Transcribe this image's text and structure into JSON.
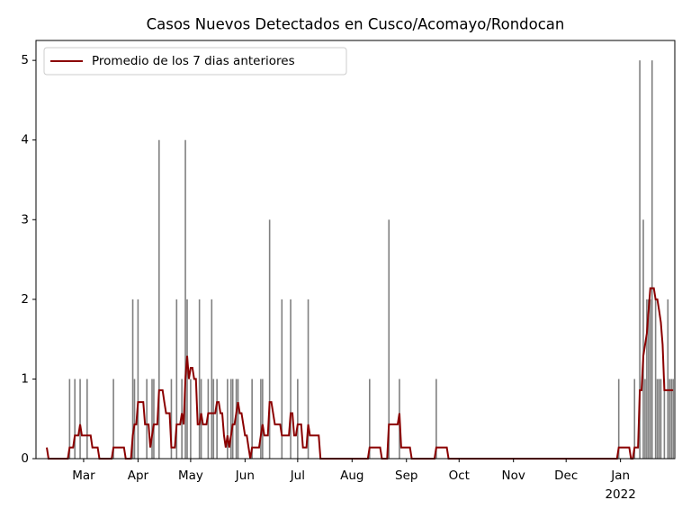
{
  "chart_data": {
    "type": "bar+line",
    "title": "Casos Nuevos Detectados en Cusco/Acomayo/Rondocan",
    "categories": [
      null,
      null,
      null,
      null,
      null,
      null,
      null,
      null,
      null,
      null,
      null,
      null,
      null,
      null,
      null,
      null,
      null,
      null,
      null,
      null,
      null,
      "Mar",
      null,
      null,
      null,
      null,
      null,
      null,
      null,
      null,
      null,
      null,
      null,
      null,
      null,
      null,
      null,
      null,
      null,
      null,
      null,
      null,
      null,
      null,
      null,
      null,
      null,
      null,
      null,
      null,
      null,
      null,
      "Apr",
      null,
      null,
      null,
      null,
      null,
      null,
      null,
      null,
      null,
      null,
      null,
      null,
      null,
      null,
      null,
      null,
      null,
      null,
      null,
      null,
      null,
      null,
      null,
      null,
      null,
      null,
      null,
      null,
      null,
      "May",
      null,
      null,
      null,
      null,
      null,
      null,
      null,
      null,
      null,
      null,
      null,
      null,
      null,
      null,
      null,
      null,
      null,
      null,
      null,
      null,
      null,
      null,
      null,
      null,
      null,
      null,
      null,
      null,
      null,
      null,
      "Jun",
      null,
      null,
      null,
      null,
      null,
      null,
      null,
      null,
      null,
      null,
      null,
      null,
      null,
      null,
      null,
      null,
      null,
      null,
      null,
      null,
      null,
      null,
      null,
      null,
      null,
      null,
      null,
      null,
      null,
      "Jul",
      null,
      null,
      null,
      null,
      null,
      null,
      null,
      null,
      null,
      null,
      null,
      null,
      null,
      null,
      null,
      null,
      null,
      null,
      null,
      null,
      null,
      null,
      null,
      null,
      null,
      null,
      null,
      null,
      null,
      null,
      "Aug",
      null,
      null,
      null,
      null,
      null,
      null,
      null,
      null,
      null,
      null,
      null,
      null,
      null,
      null,
      null,
      null,
      null,
      null,
      null,
      null,
      null,
      null,
      null,
      null,
      null,
      null,
      null,
      null,
      null,
      null,
      "Sep",
      null,
      null,
      null,
      null,
      null,
      null,
      null,
      null,
      null,
      null,
      null,
      null,
      null,
      null,
      null,
      null,
      null,
      null,
      null,
      null,
      null,
      null,
      null,
      null,
      null,
      null,
      null,
      null,
      null,
      "Oct",
      null,
      null,
      null,
      null,
      null,
      null,
      null,
      null,
      null,
      null,
      null,
      null,
      null,
      null,
      null,
      null,
      null,
      null,
      null,
      null,
      null,
      null,
      null,
      null,
      null,
      null,
      null,
      null,
      null,
      null,
      "Nov",
      null,
      null,
      null,
      null,
      null,
      null,
      null,
      null,
      null,
      null,
      null,
      null,
      null,
      null,
      null,
      null,
      null,
      null,
      null,
      null,
      null,
      null,
      null,
      null,
      null,
      null,
      null,
      null,
      null,
      "Dec",
      null,
      null,
      null,
      null,
      null,
      null,
      null,
      null,
      null,
      null,
      null,
      null,
      null,
      null,
      null,
      null,
      null,
      null,
      null,
      null,
      null,
      null,
      null,
      null,
      null,
      null,
      null,
      null,
      null,
      null,
      "Jan",
      null,
      null,
      null,
      null,
      null,
      null,
      null,
      null,
      null,
      null,
      null,
      null,
      null,
      null,
      null,
      null,
      null,
      null,
      null,
      null,
      null,
      null,
      null,
      null,
      null,
      null,
      null,
      null,
      null,
      null
    ],
    "x_year_label": "2022",
    "series": [
      {
        "color": "#808080",
        "values": [
          0,
          0,
          0,
          0,
          0,
          0,
          0,
          0,
          0,
          0,
          0,
          0,
          0,
          1,
          0,
          0,
          1,
          0,
          0,
          1,
          0,
          0,
          0,
          1,
          0,
          0,
          0,
          0,
          0,
          0,
          0,
          0,
          0,
          0,
          0,
          0,
          0,
          0,
          1,
          0,
          0,
          0,
          0,
          0,
          0,
          0,
          0,
          0,
          0,
          2,
          1,
          0,
          2,
          0,
          0,
          0,
          0,
          1,
          0,
          0,
          1,
          1,
          0,
          0,
          4,
          0,
          0,
          0,
          0,
          0,
          0,
          1,
          0,
          0,
          2,
          0,
          0,
          1,
          0,
          4,
          2,
          0,
          1,
          0,
          0,
          0,
          0,
          2,
          1,
          0,
          0,
          0,
          1,
          0,
          2,
          1,
          0,
          1,
          0,
          0,
          0,
          0,
          0,
          1,
          0,
          1,
          1,
          0,
          1,
          1,
          0,
          0,
          0,
          0,
          0,
          0,
          0,
          1,
          0,
          0,
          0,
          0,
          1,
          1,
          0,
          0,
          0,
          3,
          0,
          0,
          0,
          0,
          0,
          0,
          2,
          0,
          0,
          0,
          0,
          2,
          0,
          0,
          0,
          1,
          0,
          0,
          0,
          0,
          0,
          2,
          0,
          0,
          0,
          0,
          0,
          0,
          0,
          0,
          0,
          0,
          0,
          0,
          0,
          0,
          0,
          0,
          0,
          0,
          0,
          0,
          0,
          0,
          0,
          0,
          0,
          0,
          0,
          0,
          0,
          0,
          0,
          0,
          0,
          0,
          1,
          0,
          0,
          0,
          0,
          0,
          0,
          0,
          0,
          0,
          0,
          3,
          0,
          0,
          0,
          0,
          0,
          1,
          0,
          0,
          0,
          0,
          0,
          0,
          0,
          0,
          0,
          0,
          0,
          0,
          0,
          0,
          0,
          0,
          0,
          0,
          0,
          0,
          1,
          0,
          0,
          0,
          0,
          0,
          0,
          0,
          0,
          0,
          0,
          0,
          0,
          0,
          0,
          0,
          0,
          0,
          0,
          0,
          0,
          0,
          0,
          0,
          0,
          0,
          0,
          0,
          0,
          0,
          0,
          0,
          0,
          0,
          0,
          0,
          0,
          0,
          0,
          0,
          0,
          0,
          0,
          0,
          0,
          0,
          0,
          0,
          0,
          0,
          0,
          0,
          0,
          0,
          0,
          0,
          0,
          0,
          0,
          0,
          0,
          0,
          0,
          0,
          0,
          0,
          0,
          0,
          0,
          0,
          0,
          0,
          0,
          0,
          0,
          0,
          0,
          0,
          0,
          0,
          0,
          0,
          0,
          0,
          0,
          0,
          0,
          0,
          0,
          0,
          0,
          0,
          0,
          0,
          0,
          0,
          0,
          0,
          0,
          0,
          0,
          0,
          0,
          0,
          1,
          0,
          0,
          0,
          0,
          0,
          0,
          0,
          0,
          1,
          0,
          0,
          5,
          0,
          3,
          1,
          2,
          2,
          2,
          5,
          0,
          2,
          1,
          1,
          1,
          0,
          1,
          0,
          2,
          1,
          1,
          1
        ]
      },
      {
        "name": "Promedio de los 7 dias anteriores",
        "color": "#8b0000",
        "values": [
          0.14,
          0,
          0,
          0,
          0,
          0,
          0,
          0,
          0,
          0,
          0,
          0,
          0,
          0.14,
          0.14,
          0.14,
          0.29,
          0.29,
          0.29,
          0.43,
          0.29,
          0.29,
          0.29,
          0.29,
          0.29,
          0.29,
          0.14,
          0.14,
          0.14,
          0.14,
          0,
          0,
          0,
          0,
          0,
          0,
          0,
          0,
          0.14,
          0.14,
          0.14,
          0.14,
          0.14,
          0.14,
          0.14,
          0,
          0,
          0,
          0,
          0.29,
          0.43,
          0.43,
          0.71,
          0.71,
          0.71,
          0.71,
          0.43,
          0.43,
          0.43,
          0.14,
          0.29,
          0.43,
          0.43,
          0.43,
          0.86,
          0.86,
          0.86,
          0.71,
          0.57,
          0.57,
          0.57,
          0.14,
          0.14,
          0.14,
          0.43,
          0.43,
          0.43,
          0.57,
          0.43,
          1,
          1.29,
          1,
          1.14,
          1.14,
          1,
          1,
          0.43,
          0.43,
          0.57,
          0.43,
          0.43,
          0.43,
          0.57,
          0.57,
          0.57,
          0.57,
          0.57,
          0.71,
          0.71,
          0.57,
          0.57,
          0.29,
          0.14,
          0.29,
          0.14,
          0.29,
          0.43,
          0.43,
          0.57,
          0.71,
          0.57,
          0.57,
          0.43,
          0.29,
          0.29,
          0.14,
          0,
          0.14,
          0.14,
          0.14,
          0.14,
          0.14,
          0.29,
          0.43,
          0.29,
          0.29,
          0.29,
          0.71,
          0.71,
          0.57,
          0.43,
          0.43,
          0.43,
          0.43,
          0.29,
          0.29,
          0.29,
          0.29,
          0.29,
          0.57,
          0.57,
          0.29,
          0.29,
          0.43,
          0.43,
          0.43,
          0.14,
          0.14,
          0.14,
          0.43,
          0.29,
          0.29,
          0.29,
          0.29,
          0.29,
          0.29,
          0,
          0,
          0,
          0,
          0,
          0,
          0,
          0,
          0,
          0,
          0,
          0,
          0,
          0,
          0,
          0,
          0,
          0,
          0,
          0,
          0,
          0,
          0,
          0,
          0,
          0,
          0,
          0,
          0.14,
          0.14,
          0.14,
          0.14,
          0.14,
          0.14,
          0.14,
          0,
          0,
          0,
          0,
          0.43,
          0.43,
          0.43,
          0.43,
          0.43,
          0.43,
          0.57,
          0.14,
          0.14,
          0.14,
          0.14,
          0.14,
          0.14,
          0,
          0,
          0,
          0,
          0,
          0,
          0,
          0,
          0,
          0,
          0,
          0,
          0,
          0,
          0.14,
          0.14,
          0.14,
          0.14,
          0.14,
          0.14,
          0.14,
          0,
          0,
          0,
          0,
          0,
          0,
          0,
          0,
          0,
          0,
          0,
          0,
          0,
          0,
          0,
          0,
          0,
          0,
          0,
          0,
          0,
          0,
          0,
          0,
          0,
          0,
          0,
          0,
          0,
          0,
          0,
          0,
          0,
          0,
          0,
          0,
          0,
          0,
          0,
          0,
          0,
          0,
          0,
          0,
          0,
          0,
          0,
          0,
          0,
          0,
          0,
          0,
          0,
          0,
          0,
          0,
          0,
          0,
          0,
          0,
          0,
          0,
          0,
          0,
          0,
          0,
          0,
          0,
          0,
          0,
          0,
          0,
          0,
          0,
          0,
          0,
          0,
          0,
          0,
          0,
          0,
          0,
          0,
          0,
          0,
          0,
          0,
          0,
          0,
          0,
          0,
          0,
          0,
          0,
          0,
          0,
          0,
          0.14,
          0.14,
          0.14,
          0.14,
          0.14,
          0.14,
          0.14,
          0,
          0,
          0.14,
          0.14,
          0.14,
          0.86,
          0.86,
          1.29,
          1.43,
          1.57,
          1.86,
          2.14,
          2.14,
          2.14,
          2,
          2,
          1.86,
          1.71,
          1.43,
          0.86,
          0.86,
          0.86,
          0.86,
          0.86,
          0.86
        ]
      }
    ],
    "ylim": [
      0,
      5.25
    ],
    "yticks": [
      0,
      1,
      2,
      3,
      4,
      5
    ],
    "legend": "upper left"
  }
}
